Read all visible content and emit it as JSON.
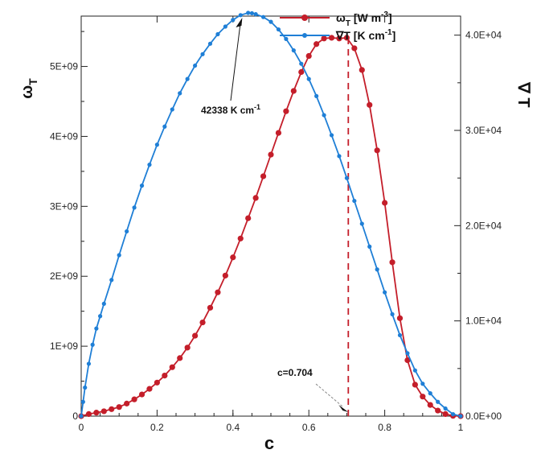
{
  "chart_data": {
    "type": "line",
    "xlabel": "c",
    "ylabel_left": "ω",
    "ylabel_left_sub": "T",
    "ylabel_right": "∇ T",
    "xlim": [
      0,
      1
    ],
    "ylim_left": [
      0,
      5720000000.0
    ],
    "ylim_right": [
      0,
      42000.0
    ],
    "x_ticks": [
      0,
      0.2,
      0.4,
      0.6,
      0.8,
      1
    ],
    "x_tick_labels": [
      "0",
      "0.2",
      "0.4",
      "0.6",
      "0.8",
      "1"
    ],
    "y_left_ticks": [
      0,
      1000000000.0,
      2000000000.0,
      3000000000.0,
      4000000000.0,
      5000000000.0
    ],
    "y_left_tick_labels": [
      "0",
      "1E+09",
      "2E+09",
      "3E+09",
      "4E+09",
      "5E+09"
    ],
    "y_right_ticks": [
      0,
      10000.0,
      20000.0,
      30000.0,
      40000.0
    ],
    "y_right_tick_labels": [
      "0.0E+00",
      "1.0E+04",
      "2.0E+04",
      "3.0E+04",
      "4.0E+04"
    ],
    "grid": false,
    "legend_position": "top-right",
    "colors": {
      "omega": "#c41e2a",
      "gradT": "#1f7fd6"
    },
    "legend": [
      {
        "label": "ω",
        "sub": "T",
        "units_pre": " [W m",
        "sup": "-3",
        "units_post": "]"
      },
      {
        "label": "∇T [K cm",
        "sup": "-1",
        "units_post": "]"
      }
    ],
    "series": [
      {
        "axis": "left",
        "x": [
          0,
          0.02,
          0.04,
          0.06,
          0.08,
          0.1,
          0.12,
          0.14,
          0.16,
          0.18,
          0.2,
          0.22,
          0.24,
          0.26,
          0.28,
          0.3,
          0.32,
          0.34,
          0.36,
          0.38,
          0.4,
          0.42,
          0.44,
          0.46,
          0.48,
          0.5,
          0.52,
          0.54,
          0.56,
          0.58,
          0.6,
          0.62,
          0.64,
          0.66,
          0.68,
          0.7,
          0.72,
          0.74,
          0.76,
          0.78,
          0.8,
          0.82,
          0.84,
          0.86,
          0.88,
          0.9,
          0.92,
          0.94,
          0.96,
          0.98,
          1.0
        ],
        "values": [
          0,
          30000000.0,
          50000000.0,
          70000000.0,
          100000000.0,
          130000000.0,
          180000000.0,
          240000000.0,
          310000000.0,
          390000000.0,
          480000000.0,
          580000000.0,
          700000000.0,
          830000000.0,
          980000000.0,
          1150000000.0,
          1340000000.0,
          1550000000.0,
          1770000000.0,
          2010000000.0,
          2270000000.0,
          2540000000.0,
          2830000000.0,
          3120000000.0,
          3430000000.0,
          3740000000.0,
          4050000000.0,
          4360000000.0,
          4650000000.0,
          4920000000.0,
          5150000000.0,
          5320000000.0,
          5400000000.0,
          5410000000.0,
          5400000000.0,
          5410000000.0,
          5260000000.0,
          4950000000.0,
          4450000000.0,
          3800000000.0,
          3050000000.0,
          2200000000.0,
          1400000000.0,
          800000000.0,
          450000000.0,
          280000000.0,
          160000000.0,
          80000000.0,
          30000000.0,
          5000000.0,
          0
        ]
      },
      {
        "axis": "right",
        "x": [
          0,
          0.005,
          0.01,
          0.02,
          0.03,
          0.04,
          0.05,
          0.06,
          0.08,
          0.1,
          0.12,
          0.14,
          0.16,
          0.18,
          0.2,
          0.22,
          0.24,
          0.26,
          0.28,
          0.3,
          0.32,
          0.34,
          0.36,
          0.38,
          0.4,
          0.42,
          0.44,
          0.45,
          0.46,
          0.48,
          0.5,
          0.52,
          0.54,
          0.56,
          0.58,
          0.6,
          0.62,
          0.64,
          0.66,
          0.68,
          0.7,
          0.72,
          0.74,
          0.76,
          0.78,
          0.8,
          0.82,
          0.84,
          0.86,
          0.88,
          0.9,
          0.92,
          0.94,
          0.96,
          0.98,
          1.0
        ],
        "values": [
          0,
          1500,
          3000,
          5500,
          7500,
          9200,
          10500,
          11800,
          14300,
          16900,
          19400,
          21900,
          24200,
          26400,
          28500,
          30400,
          32200,
          33900,
          35400,
          36800,
          38000,
          39100,
          40100,
          40900,
          41600,
          42100,
          42338,
          42300,
          42200,
          41900,
          41400,
          40600,
          39600,
          38400,
          37000,
          35400,
          33600,
          31600,
          29500,
          27300,
          25000,
          22600,
          20200,
          17800,
          15400,
          13000,
          10700,
          8500,
          6600,
          4800,
          3400,
          2400,
          1500,
          800,
          200,
          0
        ]
      }
    ],
    "annotations": [
      {
        "text": "42338 K cm",
        "sup": "-1",
        "x": 0.45,
        "y": 42338,
        "axis": "right"
      },
      {
        "text": "c=0.704",
        "x": 0.704,
        "y": 0,
        "axis": "left"
      }
    ],
    "vline": {
      "x": 0.704,
      "y_top": 5410000000.0,
      "axis": "left"
    }
  }
}
